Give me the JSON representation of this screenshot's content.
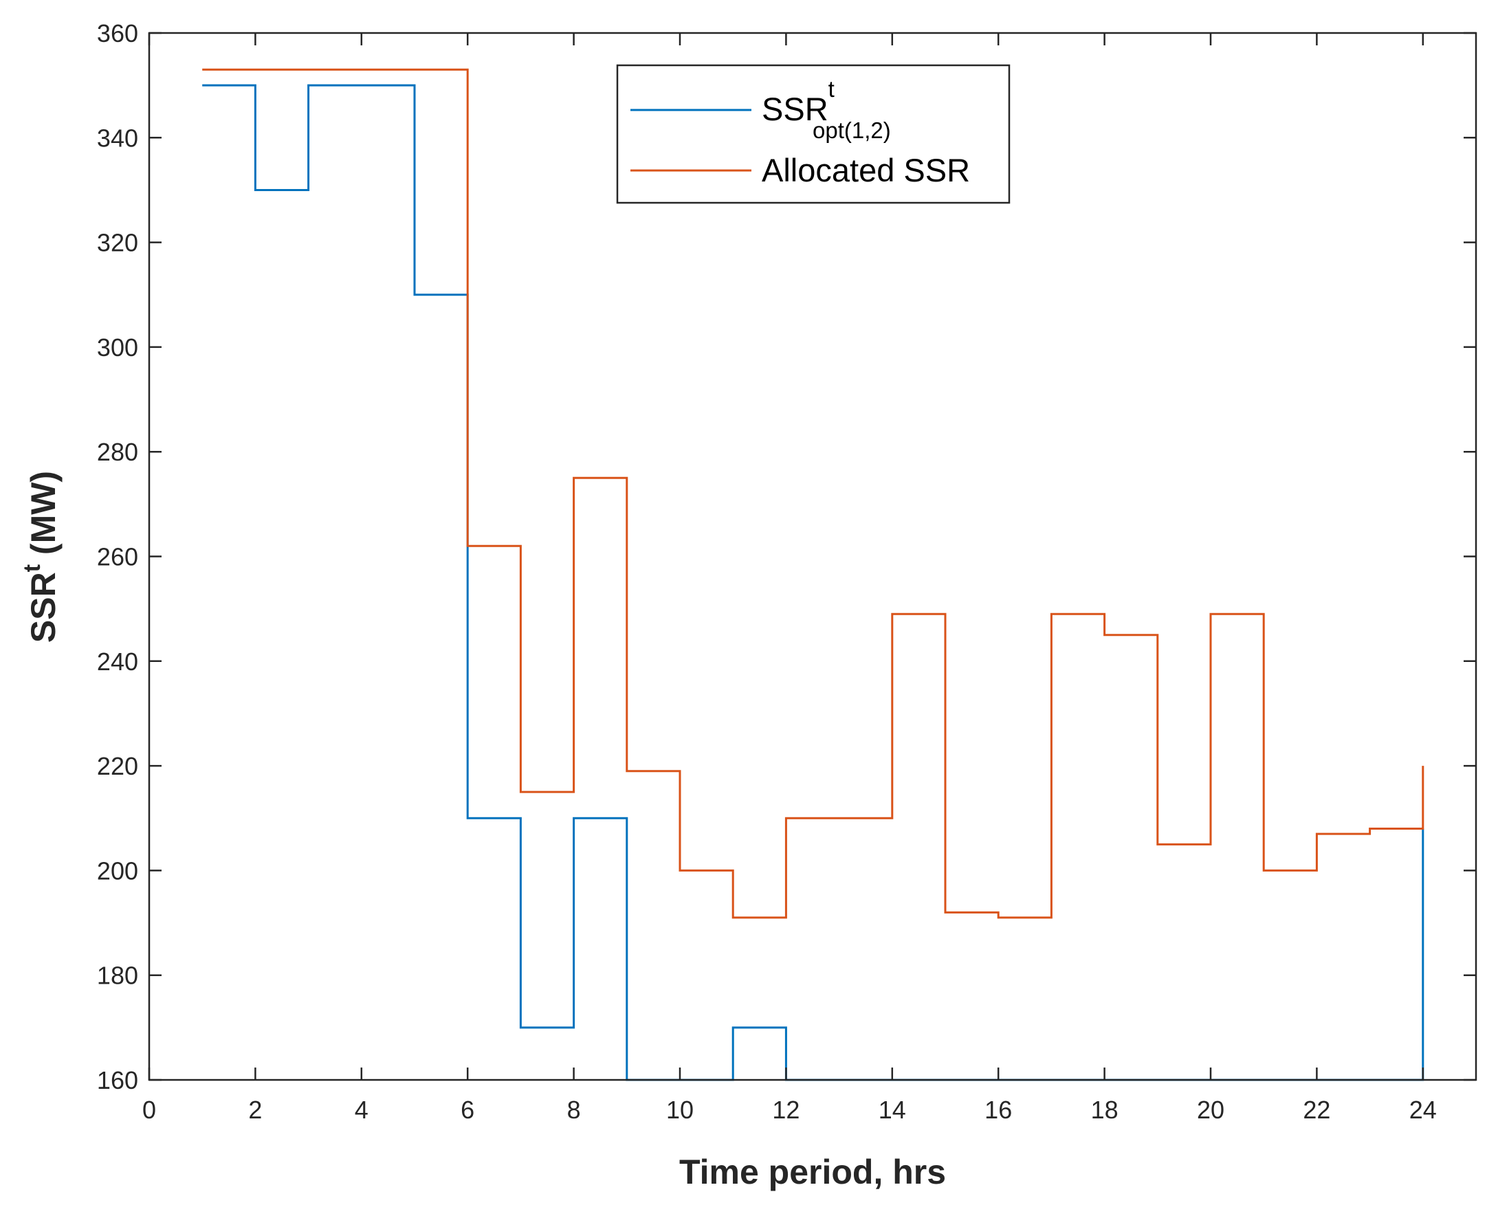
{
  "chart_data": {
    "type": "line",
    "style": "stairs",
    "xlabel": "Time period, hrs",
    "ylabel_main": "SSR",
    "ylabel_sup": "t",
    "ylabel_unit": "(MW)",
    "xlim": [
      0,
      25
    ],
    "ylim": [
      160,
      360
    ],
    "xticks": [
      0,
      2,
      4,
      6,
      8,
      10,
      12,
      14,
      16,
      18,
      20,
      22,
      24
    ],
    "yticks": [
      160,
      180,
      200,
      220,
      240,
      260,
      280,
      300,
      320,
      340,
      360
    ],
    "x": [
      1,
      2,
      3,
      4,
      5,
      6,
      7,
      8,
      9,
      10,
      11,
      12,
      13,
      14,
      15,
      16,
      17,
      18,
      19,
      20,
      21,
      22,
      23,
      24
    ],
    "series": [
      {
        "name": "SSR_opt(1,2)^t",
        "legend_main": "SSR",
        "legend_sup": "t",
        "legend_sub": "opt(1,2)",
        "color": "#0072BD",
        "values": [
          350,
          330,
          350,
          350,
          310,
          210,
          170,
          210,
          160,
          160,
          170,
          160,
          160,
          160,
          160,
          160,
          160,
          160,
          160,
          160,
          160,
          160,
          160,
          208
        ]
      },
      {
        "name": "Allocated SSR",
        "legend_main": "Allocated SSR",
        "color": "#D95319",
        "values": [
          353,
          353,
          353,
          353,
          353,
          262,
          215,
          275,
          219,
          200,
          191,
          210,
          210,
          249,
          192,
          191,
          249,
          245,
          205,
          249,
          200,
          207,
          208,
          220
        ]
      }
    ],
    "legend_position": "top-center"
  }
}
